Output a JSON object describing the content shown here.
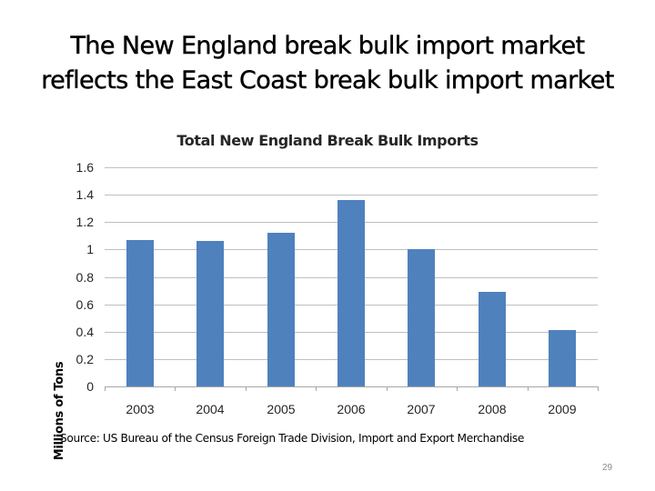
{
  "slide": {
    "title_line1": "The New England break bulk import market",
    "title_line2": "reflects the East Coast break bulk import market",
    "source": "Source: US Bureau of the Census Foreign Trade Division, Import and Export Merchandise",
    "page_number": "29"
  },
  "colors": {
    "bar": "#4f81bd",
    "gridline": "#bfbfbf"
  },
  "chart_data": {
    "type": "bar",
    "title": "Total New England Break Bulk Imports",
    "xlabel": "",
    "ylabel": "Millions of Tons",
    "categories": [
      "2003",
      "2004",
      "2005",
      "2006",
      "2007",
      "2008",
      "2009"
    ],
    "values": [
      1.07,
      1.06,
      1.12,
      1.36,
      1.0,
      0.69,
      0.41
    ],
    "ylim": [
      0,
      1.6
    ],
    "yticks": [
      "0",
      "0.2",
      "0.4",
      "0.6",
      "0.8",
      "1",
      "1.2",
      "1.4",
      "1.6"
    ],
    "grid": true,
    "legend": "none"
  }
}
